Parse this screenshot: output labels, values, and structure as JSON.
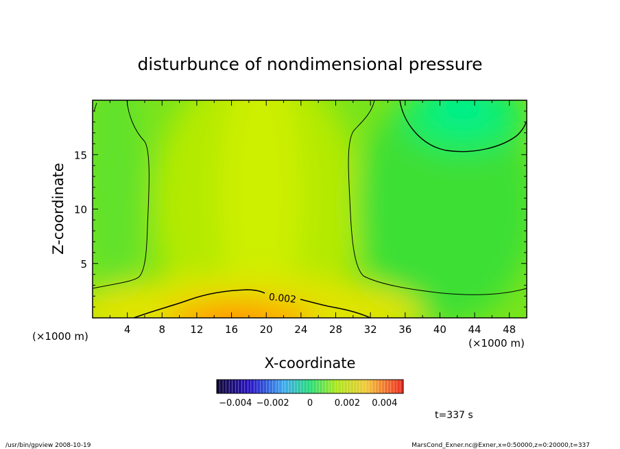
{
  "chart_data": {
    "type": "heatmap",
    "title": "disturbunce of nondimensional pressure",
    "xlabel": "X-coordinate",
    "ylabel": "Z-coordinate",
    "x_unit": "(×1000 m)",
    "y_unit": "(×1000 m)",
    "xlim": [
      0,
      50
    ],
    "ylim": [
      0,
      20
    ],
    "x_ticks": [
      4,
      8,
      12,
      16,
      20,
      24,
      28,
      32,
      36,
      40,
      44,
      48
    ],
    "y_ticks": [
      5,
      10,
      15
    ],
    "x_tick_labels": [
      "4",
      "8",
      "12",
      "16",
      "20",
      "24",
      "28",
      "32",
      "36",
      "40",
      "44",
      "48"
    ],
    "y_tick_labels": [
      "5",
      "10",
      "15"
    ],
    "contour_labels": [
      {
        "text": "0.002",
        "x": 21.5,
        "y": 1.8
      }
    ],
    "colorbar": {
      "range": [
        -0.005,
        0.005
      ],
      "ticks": [
        -0.004,
        -0.002,
        0,
        0.002,
        0.004
      ],
      "tick_labels": [
        "−0.004",
        "−0.002",
        "0",
        "0.002",
        "0.004"
      ]
    },
    "field_description": "high values near the bottom centre (x≈15–25), low values at the top right (x≈44, z≈19)",
    "annotation": "t=337 s",
    "grid": false,
    "legend": "colorbar-below"
  },
  "footer": {
    "left": "/usr/bin/gpview   2008-10-19",
    "right": "MarsCond_Exner.nc@Exner,x=0:50000,z=0:20000,t=337"
  },
  "colors": {
    "field_low": "#00f07a",
    "field_mid": "#9ae600",
    "field_high": "#ff9800",
    "contour": "#000000"
  }
}
